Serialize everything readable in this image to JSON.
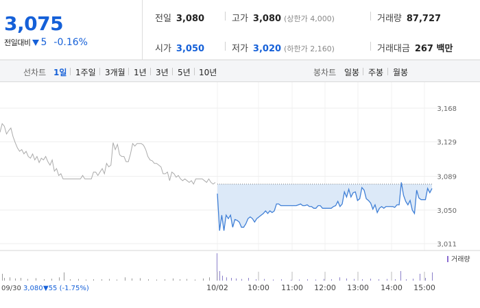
{
  "quote": {
    "price": "3,075",
    "change_label": "전일대비",
    "change_abs": "5",
    "change_pct": "-0.16%",
    "prev_close_label": "전일",
    "prev_close": "3,080",
    "high_label": "고가",
    "high": "3,080",
    "upper_limit": "(상한가 4,000)",
    "volume_label": "거래량",
    "volume": "87,727",
    "open_label": "시가",
    "open": "3,050",
    "low_label": "저가",
    "low": "3,020",
    "lower_limit": "(하한가 2,160)",
    "amount_label": "거래대금",
    "amount": "267 백만",
    "down_color": "#1560d8"
  },
  "toolbar": {
    "line_label": "선차트",
    "line_periods": [
      "1일",
      "1주일",
      "3개월",
      "1년",
      "3년",
      "5년",
      "10년"
    ],
    "active_period": "1일",
    "candle_label": "봉차트",
    "candle_periods": [
      "일봉",
      "주봉",
      "월봉"
    ]
  },
  "chart_data": {
    "type": "line",
    "y_ticks": [
      "3,168",
      "3,129",
      "3,089",
      "3,050",
      "3,011"
    ],
    "ylim": [
      3011,
      3168
    ],
    "reference_line": 3080,
    "time_labels": [
      "10/02",
      "10:00",
      "11:00",
      "12:00",
      "13:00",
      "14:00",
      "15:00"
    ],
    "prev_day_label": "09/30",
    "prev_day_close": "3,080",
    "prev_day_change": "▼55 (-1.75%)",
    "volume_legend": "거래량",
    "prev_series": {
      "name": "09/30",
      "color": "#aaaaaa",
      "values": [
        3140,
        3150,
        3147,
        3138,
        3142,
        3145,
        3135,
        3128,
        3122,
        3118,
        3120,
        3115,
        3118,
        3112,
        3110,
        3115,
        3108,
        3112,
        3105,
        3110,
        3108,
        3112,
        3106,
        3102,
        3108,
        3095,
        3098,
        3090,
        3092,
        3086,
        3086,
        3086,
        3086,
        3086,
        3086,
        3086,
        3086,
        3086,
        3090,
        3086,
        3086,
        3086,
        3086,
        3094,
        3094,
        3090,
        3094,
        3098,
        3092,
        3104,
        3100,
        3102,
        3128,
        3120,
        3126,
        3114,
        3112,
        3112,
        3106,
        3106,
        3115,
        3127,
        3124,
        3127,
        3127,
        3127,
        3125,
        3120,
        3112,
        3108,
        3107,
        3104,
        3104,
        3102,
        3100,
        3092,
        3092,
        3094,
        3084,
        3094,
        3092,
        3088,
        3090,
        3086,
        3084,
        3086,
        3084,
        3082,
        3084,
        3080,
        3086,
        3086,
        3086,
        3086,
        3084,
        3082,
        3086,
        3082,
        3080,
        3082
      ]
    },
    "today_series": {
      "name": "10/02",
      "color": "#3f7fd6",
      "fill": "#dce9f8",
      "values": [
        3069,
        3026,
        3044,
        3026,
        3044,
        3040,
        3044,
        3030,
        3039,
        3038,
        3036,
        3030,
        3030,
        3034,
        3040,
        3042,
        3040,
        3036,
        3040,
        3042,
        3044,
        3046,
        3049,
        3046,
        3049,
        3047,
        3049,
        3057,
        3057,
        3055,
        3055,
        3055,
        3055,
        3055,
        3055,
        3055,
        3055,
        3056,
        3057,
        3055,
        3055,
        3056,
        3054,
        3054,
        3052,
        3052,
        3055,
        3055,
        3052,
        3052,
        3052,
        3052,
        3052,
        3054,
        3055,
        3060,
        3054,
        3057,
        3071,
        3065,
        3074,
        3065,
        3070,
        3071,
        3061,
        3063,
        3076,
        3073,
        3063,
        3061,
        3058,
        3051,
        3056,
        3047,
        3052,
        3054,
        3052,
        3054,
        3054,
        3054,
        3054,
        3053,
        3056,
        3056,
        3082,
        3067,
        3060,
        3056,
        3061,
        3050,
        3046,
        3073,
        3064,
        3062,
        3062,
        3062,
        3075,
        3070,
        3075
      ]
    },
    "volume_bars": [
      {
        "x": 3,
        "v": 0.25
      },
      {
        "x": 6,
        "v": 0.1
      },
      {
        "x": 14,
        "v": 0.12
      },
      {
        "x": 22,
        "v": 0.08
      },
      {
        "x": 30,
        "v": 0.1
      },
      {
        "x": 40,
        "v": 0.06
      },
      {
        "x": 52,
        "v": 0.09
      },
      {
        "x": 64,
        "v": 0.05
      },
      {
        "x": 75,
        "v": 0.07
      },
      {
        "x": 86,
        "v": 0.12
      },
      {
        "x": 93,
        "v": 0.3
      },
      {
        "x": 102,
        "v": 0.05
      },
      {
        "x": 114,
        "v": 0.06
      },
      {
        "x": 125,
        "v": 0.04
      },
      {
        "x": 136,
        "v": 0.05
      },
      {
        "x": 148,
        "v": 0.05
      },
      {
        "x": 159,
        "v": 0.06
      },
      {
        "x": 170,
        "v": 0.04
      },
      {
        "x": 182,
        "v": 0.12
      },
      {
        "x": 192,
        "v": 0.08
      },
      {
        "x": 204,
        "v": 0.09
      },
      {
        "x": 216,
        "v": 0.05
      },
      {
        "x": 228,
        "v": 0.04
      },
      {
        "x": 240,
        "v": 0.05
      },
      {
        "x": 252,
        "v": 0.08
      },
      {
        "x": 262,
        "v": 0.05
      },
      {
        "x": 272,
        "v": 0.06
      },
      {
        "x": 284,
        "v": 0.04
      },
      {
        "x": 296,
        "v": 0.08
      },
      {
        "x": 305,
        "v": 0.12
      },
      {
        "x": 316,
        "v": 1.0
      },
      {
        "x": 320,
        "v": 0.35
      },
      {
        "x": 324,
        "v": 0.18
      },
      {
        "x": 330,
        "v": 0.12
      },
      {
        "x": 337,
        "v": 0.1
      },
      {
        "x": 344,
        "v": 0.08
      },
      {
        "x": 352,
        "v": 0.06
      },
      {
        "x": 362,
        "v": 0.1
      },
      {
        "x": 373,
        "v": 0.05
      },
      {
        "x": 385,
        "v": 0.06
      },
      {
        "x": 398,
        "v": 0.04
      },
      {
        "x": 410,
        "v": 0.05
      },
      {
        "x": 424,
        "v": 0.03
      },
      {
        "x": 436,
        "v": 0.04
      },
      {
        "x": 448,
        "v": 0.05
      },
      {
        "x": 460,
        "v": 0.04
      },
      {
        "x": 472,
        "v": 0.06
      },
      {
        "x": 483,
        "v": 0.05
      },
      {
        "x": 495,
        "v": 0.12
      },
      {
        "x": 505,
        "v": 0.08
      },
      {
        "x": 516,
        "v": 0.06
      },
      {
        "x": 528,
        "v": 0.05
      },
      {
        "x": 540,
        "v": 0.07
      },
      {
        "x": 552,
        "v": 0.05
      },
      {
        "x": 564,
        "v": 0.06
      },
      {
        "x": 576,
        "v": 0.05
      },
      {
        "x": 584,
        "v": 0.35
      },
      {
        "x": 592,
        "v": 0.05
      },
      {
        "x": 602,
        "v": 0.07
      },
      {
        "x": 612,
        "v": 0.25
      },
      {
        "x": 620,
        "v": 0.1
      },
      {
        "x": 630,
        "v": 0.3
      }
    ]
  }
}
